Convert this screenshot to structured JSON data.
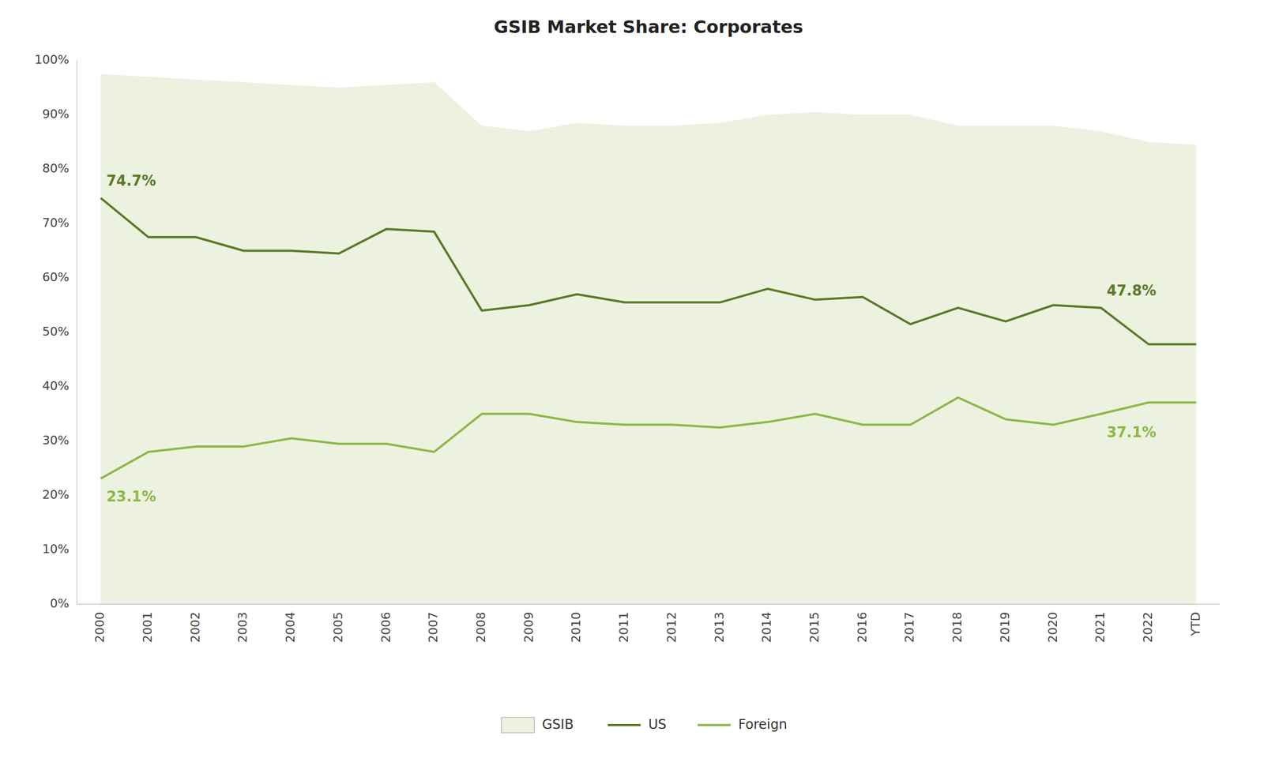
{
  "chart_data": {
    "type": "line",
    "title": "GSIB Market Share: Corporates",
    "categories": [
      "2000",
      "2001",
      "2002",
      "2003",
      "2004",
      "2005",
      "2006",
      "2007",
      "2008",
      "2009",
      "2010",
      "2011",
      "2012",
      "2013",
      "2014",
      "2015",
      "2016",
      "2017",
      "2018",
      "2019",
      "2020",
      "2021",
      "2022",
      "YTD"
    ],
    "series": [
      {
        "name": "GSIB",
        "type": "area",
        "color": "#edf2e0",
        "values": [
          97.5,
          97.0,
          96.5,
          96.0,
          95.5,
          95.0,
          95.5,
          96.0,
          88.0,
          87.0,
          88.5,
          88.0,
          88.0,
          88.5,
          90.0,
          90.5,
          90.0,
          90.0,
          88.0,
          88.0,
          88.0,
          87.0,
          85.0,
          84.5
        ]
      },
      {
        "name": "US",
        "type": "line",
        "color": "#5a7a28",
        "values": [
          74.7,
          67.5,
          67.5,
          65.0,
          65.0,
          64.5,
          69.0,
          68.5,
          54.0,
          55.0,
          57.0,
          55.5,
          55.5,
          55.5,
          58.0,
          56.0,
          56.5,
          51.5,
          54.5,
          52.0,
          55.0,
          54.5,
          47.8,
          47.8
        ]
      },
      {
        "name": "Foreign",
        "type": "line",
        "color": "#8db84a",
        "values": [
          23.1,
          28.0,
          29.0,
          29.0,
          30.5,
          29.5,
          29.5,
          28.0,
          35.0,
          35.0,
          33.5,
          33.0,
          33.0,
          32.5,
          33.5,
          35.0,
          33.0,
          33.0,
          38.0,
          34.0,
          33.0,
          35.0,
          37.1,
          37.1
        ]
      }
    ],
    "annotations": [
      {
        "text": "74.7%",
        "series": "US",
        "x": "2000",
        "y": 74.7,
        "color": "#5a7a28"
      },
      {
        "text": "23.1%",
        "series": "Foreign",
        "x": "2000",
        "y": 23.1,
        "color": "#8db84a"
      },
      {
        "text": "47.8%",
        "series": "US",
        "x": "2021",
        "y": 54.5,
        "color": "#5a7a28"
      },
      {
        "text": "37.1%",
        "series": "Foreign",
        "x": "2021",
        "y": 35.0,
        "color": "#8db84a"
      }
    ],
    "ylim": [
      0,
      100
    ],
    "yticks": [
      {
        "value": 0,
        "label": "0%"
      },
      {
        "value": 10,
        "label": "10%"
      },
      {
        "value": 20,
        "label": "20%"
      },
      {
        "value": 30,
        "label": "30%"
      },
      {
        "value": 40,
        "label": "40%"
      },
      {
        "value": 50,
        "label": "50%"
      },
      {
        "value": 60,
        "label": "60%"
      },
      {
        "value": 70,
        "label": "70%"
      },
      {
        "value": 80,
        "label": "80%"
      },
      {
        "value": 90,
        "label": "90%"
      },
      {
        "value": 100,
        "label": "100%"
      }
    ],
    "grid": false,
    "legend": "bottom"
  }
}
